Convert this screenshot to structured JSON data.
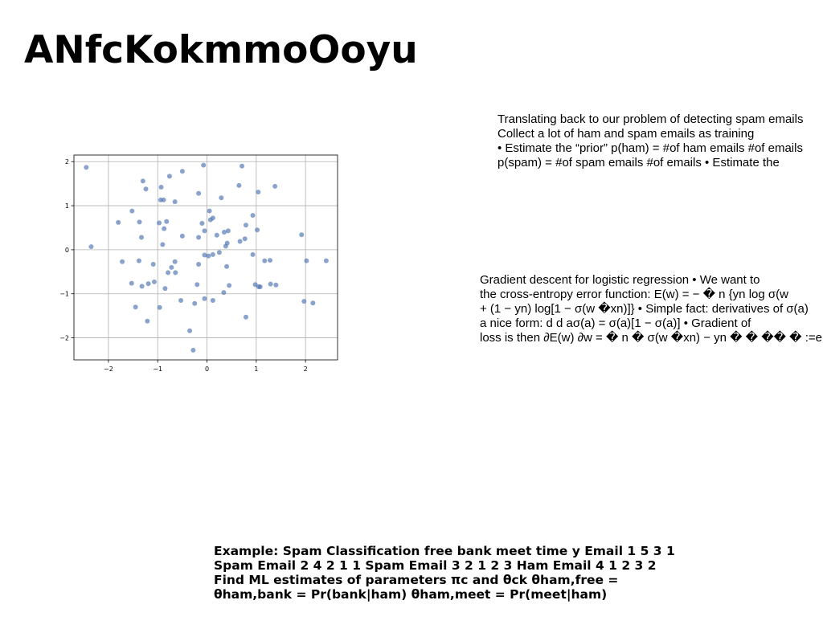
{
  "slide": {
    "title": "ANfcKokmmoOoyu",
    "paragraph1": [
      "Translating back to our problem of detecting spam emails",
      "Collect a lot of ham and spam emails as training",
      "• Estimate the “prior” p(ham) = #of ham emails #of emails",
      "p(spam) = #of spam emails #of emails • Estimate the"
    ],
    "paragraph2": [
      "Gradient descent for logistic regression • We want to",
      "the cross-entropy error function: E(w) = − � n {yn log σ(w",
      "+ (1 − yn) log[1 − σ(w �xn)]} • Simple fact: derivatives of σ(a)",
      "a nice form: d d aσ(a) = σ(a)[1 − σ(a)] • Gradient of",
      "loss is then ∂E(w) ∂w = � n � σ(w �xn) − yn � � �� � :=en xn"
    ],
    "example": [
      "Example: Spam Classification free bank meet time y Email 1 5 3 1",
      "Spam Email 2 4 2 1 1 Spam Email 3 2 1 2 3 Ham Email 4 1 2 3 2",
      "Find ML estimates of parameters πc and θck θham,free =",
      "θham,bank = Pr(bank|ham) θham,meet = Pr(meet|ham)"
    ]
  },
  "chart_data": {
    "type": "scatter",
    "title": "",
    "xlabel": "",
    "ylabel": "",
    "xlim": [
      -2.7,
      2.65
    ],
    "ylim": [
      -2.5,
      2.15
    ],
    "xticks": [
      "−2",
      "−1",
      "0",
      "1",
      "2"
    ],
    "yticks": [
      "2",
      "1",
      "0",
      "−1",
      "−2"
    ],
    "xtick_values": [
      -2,
      -1,
      0,
      1,
      2
    ],
    "ytick_values": [
      2,
      1,
      0,
      -1,
      -2
    ],
    "grid": true,
    "marker_color": "#4c72b0",
    "points": [
      {
        "x": -2.45,
        "y": 1.87
      },
      {
        "x": -2.35,
        "y": 0.07
      },
      {
        "x": -1.8,
        "y": 0.62
      },
      {
        "x": -1.72,
        "y": -0.27
      },
      {
        "x": -1.52,
        "y": 0.88
      },
      {
        "x": -1.53,
        "y": -0.76
      },
      {
        "x": -1.45,
        "y": -1.3
      },
      {
        "x": -1.38,
        "y": -0.25
      },
      {
        "x": -1.37,
        "y": 0.63
      },
      {
        "x": -1.33,
        "y": 0.28
      },
      {
        "x": -1.32,
        "y": -0.83
      },
      {
        "x": -1.3,
        "y": 1.56
      },
      {
        "x": -1.24,
        "y": 1.38
      },
      {
        "x": -1.21,
        "y": -1.62
      },
      {
        "x": -1.19,
        "y": -0.77
      },
      {
        "x": -1.09,
        "y": -0.33
      },
      {
        "x": -1.07,
        "y": -0.73
      },
      {
        "x": -0.97,
        "y": 0.61
      },
      {
        "x": -0.96,
        "y": -1.31
      },
      {
        "x": -0.94,
        "y": 1.13
      },
      {
        "x": -0.93,
        "y": 1.42
      },
      {
        "x": -0.9,
        "y": 0.12
      },
      {
        "x": -0.88,
        "y": 1.13
      },
      {
        "x": -0.87,
        "y": 0.48
      },
      {
        "x": -0.85,
        "y": -0.88
      },
      {
        "x": -0.82,
        "y": 0.64
      },
      {
        "x": -0.79,
        "y": -0.52
      },
      {
        "x": -0.76,
        "y": 1.67
      },
      {
        "x": -0.72,
        "y": -0.4
      },
      {
        "x": -0.65,
        "y": 1.09
      },
      {
        "x": -0.65,
        "y": -0.27
      },
      {
        "x": -0.64,
        "y": -0.52
      },
      {
        "x": -0.53,
        "y": -1.15
      },
      {
        "x": -0.5,
        "y": 1.78
      },
      {
        "x": -0.5,
        "y": 0.31
      },
      {
        "x": -0.35,
        "y": -1.84
      },
      {
        "x": -0.28,
        "y": -2.28
      },
      {
        "x": -0.25,
        "y": -1.22
      },
      {
        "x": -0.2,
        "y": -0.79
      },
      {
        "x": -0.17,
        "y": 1.28
      },
      {
        "x": -0.17,
        "y": -0.33
      },
      {
        "x": -0.17,
        "y": 0.28
      },
      {
        "x": -0.1,
        "y": 0.6
      },
      {
        "x": -0.07,
        "y": 1.92
      },
      {
        "x": -0.05,
        "y": 0.43
      },
      {
        "x": -0.05,
        "y": -1.11
      },
      {
        "x": -0.05,
        "y": -0.12
      },
      {
        "x": 0.03,
        "y": -0.14
      },
      {
        "x": 0.05,
        "y": 0.88
      },
      {
        "x": 0.07,
        "y": 0.68
      },
      {
        "x": 0.12,
        "y": 0.72
      },
      {
        "x": 0.12,
        "y": -0.11
      },
      {
        "x": 0.12,
        "y": -1.15
      },
      {
        "x": 0.2,
        "y": 0.33
      },
      {
        "x": 0.25,
        "y": -0.06
      },
      {
        "x": 0.29,
        "y": 1.18
      },
      {
        "x": 0.34,
        "y": -0.97
      },
      {
        "x": 0.35,
        "y": 0.4
      },
      {
        "x": 0.38,
        "y": 0.08
      },
      {
        "x": 0.4,
        "y": -0.38
      },
      {
        "x": 0.41,
        "y": 0.15
      },
      {
        "x": 0.43,
        "y": 0.43
      },
      {
        "x": 0.45,
        "y": -0.81
      },
      {
        "x": 0.65,
        "y": 1.46
      },
      {
        "x": 0.67,
        "y": 0.19
      },
      {
        "x": 0.71,
        "y": 1.9
      },
      {
        "x": 0.77,
        "y": 0.25
      },
      {
        "x": 0.79,
        "y": 0.56
      },
      {
        "x": 0.79,
        "y": -1.53
      },
      {
        "x": 0.93,
        "y": 0.78
      },
      {
        "x": 0.93,
        "y": -0.11
      },
      {
        "x": 0.98,
        "y": -0.79
      },
      {
        "x": 1.02,
        "y": 0.45
      },
      {
        "x": 1.04,
        "y": 1.31
      },
      {
        "x": 1.05,
        "y": -0.84
      },
      {
        "x": 1.08,
        "y": -0.84
      },
      {
        "x": 1.17,
        "y": -0.25
      },
      {
        "x": 1.28,
        "y": -0.24
      },
      {
        "x": 1.29,
        "y": -0.78
      },
      {
        "x": 1.38,
        "y": 1.44
      },
      {
        "x": 1.4,
        "y": -0.8
      },
      {
        "x": 1.92,
        "y": 0.34
      },
      {
        "x": 1.97,
        "y": -1.17
      },
      {
        "x": 2.02,
        "y": -0.25
      },
      {
        "x": 2.15,
        "y": -1.21
      },
      {
        "x": 2.42,
        "y": -0.25
      }
    ]
  }
}
